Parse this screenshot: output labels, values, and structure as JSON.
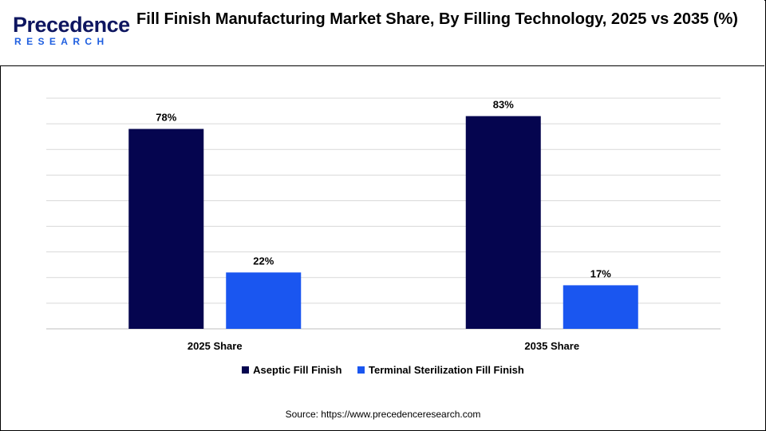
{
  "header": {
    "logo_main": "Precedence",
    "logo_sub": "RESEARCH",
    "title": "Fill Finish Manufacturing Market Share, By Filling Technology, 2025 vs 2035 (%)"
  },
  "chart_data": {
    "type": "bar",
    "title": "Fill Finish Manufacturing Market Share, By Filling Technology, 2025 vs 2035 (%)",
    "categories": [
      "2025 Share",
      "2035 Share"
    ],
    "series": [
      {
        "name": "Aseptic Fill Finish",
        "values": [
          78,
          83
        ],
        "labels": [
          "78%",
          "83%"
        ],
        "color": "#05054f"
      },
      {
        "name": "Terminal Sterilization Fill Finish",
        "values": [
          22,
          17
        ],
        "labels": [
          "22%",
          "17%"
        ],
        "color": "#1a56f0"
      }
    ],
    "xlabel": "",
    "ylabel": "",
    "ylim": [
      0,
      90
    ],
    "grid": true,
    "legend": "bottom-center"
  },
  "footer": {
    "source": "Source: https://www.precedenceresearch.com"
  },
  "colors": {
    "grid": "#d9d9d9",
    "axis": "#bfbfbf"
  }
}
